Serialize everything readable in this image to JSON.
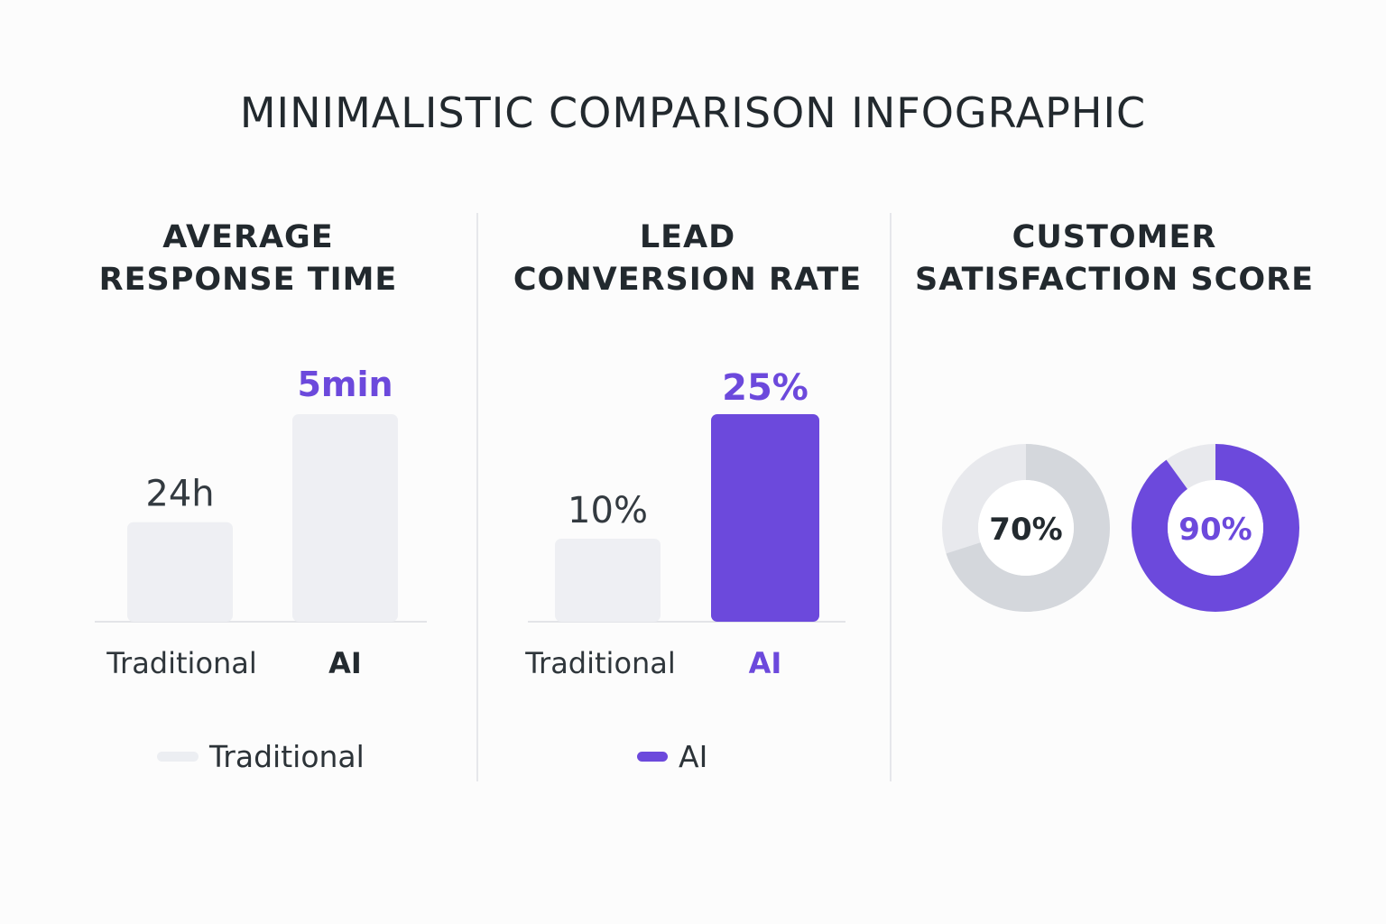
{
  "title": "MINIMALISTIC COMPARISON INFOGRAPHIC",
  "colors": {
    "traditional": "#eeeff3",
    "ai": "#6c49dc",
    "text_dark": "#232a2f",
    "ring_track": "#e8e9ed",
    "ring_dark": "#d4d7dc"
  },
  "legend": {
    "traditional_label": "Traditional",
    "ai_label": "AI"
  },
  "chart_data": [
    {
      "type": "bar",
      "title_line1": "AVERAGE",
      "title_line2": "RESPONSE TIME",
      "categories": [
        "Traditional",
        "AI"
      ],
      "value_labels": [
        "24h",
        "5min"
      ],
      "ai_value_primary": "5",
      "ai_value_unit": "min",
      "relative_heights": [
        0.48,
        1.0
      ],
      "ylim": [
        0,
        1
      ]
    },
    {
      "type": "bar",
      "title_line1": "LEAD",
      "title_line2": "CONVERSION RATE",
      "categories": [
        "Traditional",
        "AI"
      ],
      "values": [
        10,
        25
      ],
      "value_labels": [
        "10%",
        "25%"
      ],
      "unit": "%",
      "ylim": [
        0,
        25
      ]
    },
    {
      "type": "pie",
      "title_line1": "CUSTOMER",
      "title_line2": "SATISFACTION SCORE",
      "categories": [
        "Traditional",
        "AI"
      ],
      "values": [
        70,
        90
      ],
      "value_labels": [
        "70%",
        "90%"
      ],
      "unit": "%",
      "max": 100
    }
  ]
}
